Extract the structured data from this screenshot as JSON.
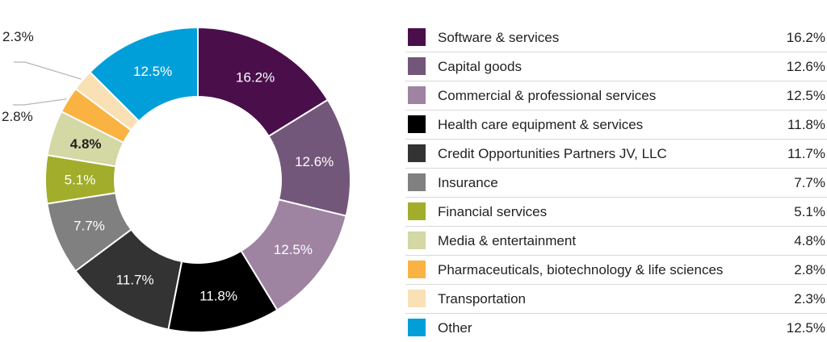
{
  "chart_data": {
    "type": "pie",
    "variant": "donut",
    "title": "",
    "legend_position": "right",
    "segments": [
      {
        "label": "Software & services",
        "value": 16.2,
        "display": "16.2%",
        "color": "#4a0f4b"
      },
      {
        "label": "Capital goods",
        "value": 12.6,
        "display": "12.6%",
        "color": "#73577a"
      },
      {
        "label": "Commercial & professional services",
        "value": 12.5,
        "display": "12.5%",
        "color": "#9f84a2"
      },
      {
        "label": "Health care equipment & services",
        "value": 11.8,
        "display": "11.8%",
        "color": "#000000"
      },
      {
        "label": "Credit Opportunities Partners JV, LLC",
        "value": 11.7,
        "display": "11.7%",
        "color": "#333333"
      },
      {
        "label": "Insurance",
        "value": 7.7,
        "display": "7.7%",
        "color": "#808080"
      },
      {
        "label": "Financial services",
        "value": 5.1,
        "display": "5.1%",
        "color": "#a1ad2b"
      },
      {
        "label": "Media & entertainment",
        "value": 4.8,
        "display": "4.8%",
        "color": "#d3d8a4"
      },
      {
        "label": "Pharmaceuticals, biotechnology & life sciences",
        "value": 2.8,
        "display": "2.8%",
        "color": "#fab242"
      },
      {
        "label": "Transportation",
        "value": 2.3,
        "display": "2.3%",
        "color": "#fae0b5"
      },
      {
        "label": "Other",
        "value": 12.5,
        "display": "12.5%",
        "color": "#009fda"
      }
    ]
  }
}
